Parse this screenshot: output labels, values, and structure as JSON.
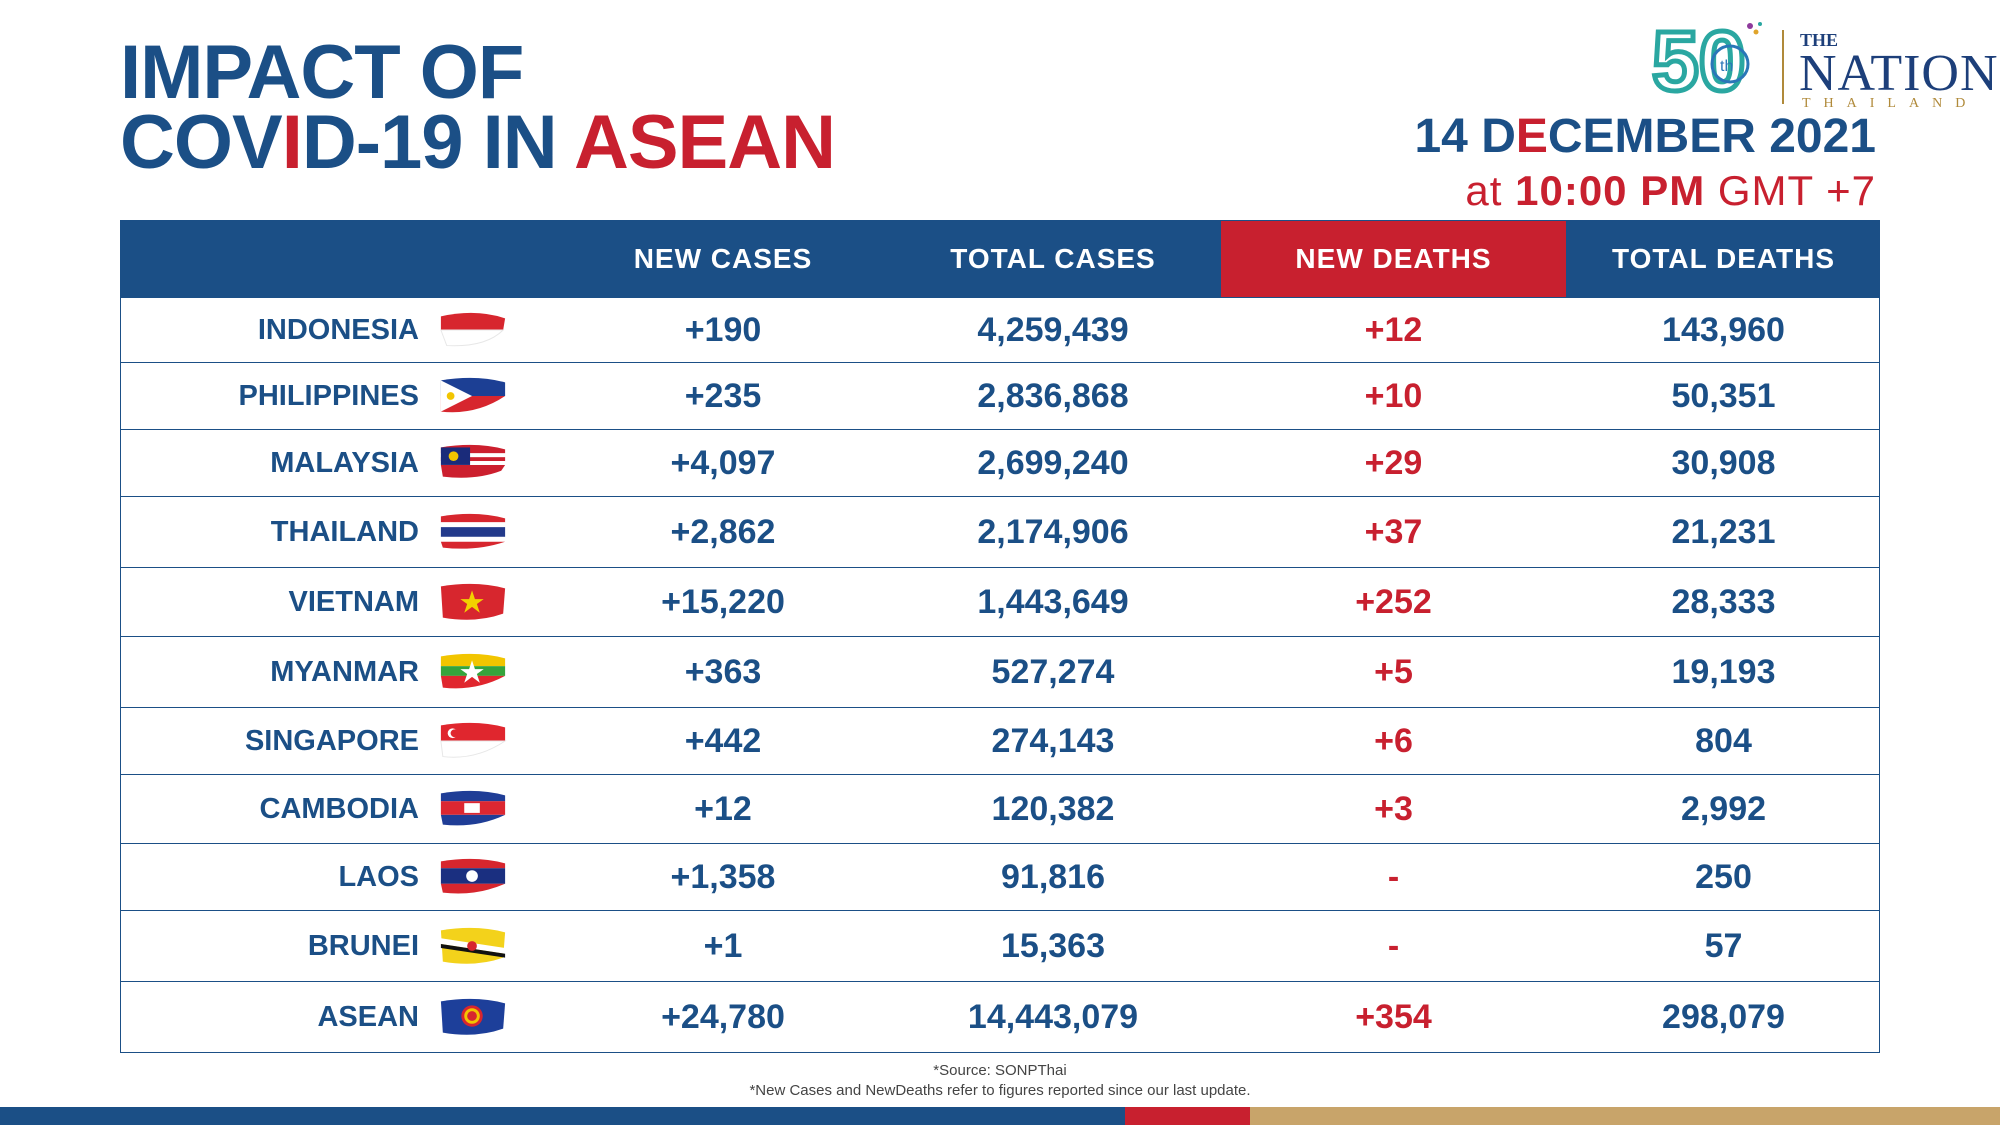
{
  "title": {
    "line1": "IMPACT OF",
    "line2_a": "COV",
    "line2_b": "I",
    "line2_c": "D-19 IN ",
    "line2_d": "ASEAN"
  },
  "logo": {
    "number": "50",
    "suffix": "th",
    "the": "THE",
    "name": "NATION",
    "sub": "THAILAND"
  },
  "date": {
    "a": "14 D",
    "b": "E",
    "c": "CEMBER 2021",
    "time_a": "at ",
    "time_b": "10:00 PM",
    "time_c": " GMT +7"
  },
  "table": {
    "headers": [
      "",
      "NEW CASES",
      "TOTAL CASES",
      "NEW DEATHS",
      "TOTAL DEATHS"
    ],
    "rows": [
      {
        "country": "INDONESIA",
        "flag": "indonesia-flag",
        "new_cases": "+190",
        "total_cases": "4,259,439",
        "new_deaths": "+12",
        "total_deaths": "143,960"
      },
      {
        "country": "PHILIPPINES",
        "flag": "philippines-flag",
        "new_cases": "+235",
        "total_cases": "2,836,868",
        "new_deaths": "+10",
        "total_deaths": "50,351"
      },
      {
        "country": "MALAYSIA",
        "flag": "malaysia-flag",
        "new_cases": "+4,097",
        "total_cases": "2,699,240",
        "new_deaths": "+29",
        "total_deaths": "30,908"
      },
      {
        "country": "THAILAND",
        "flag": "thailand-flag",
        "new_cases": "+2,862",
        "total_cases": "2,174,906",
        "new_deaths": "+37",
        "total_deaths": "21,231"
      },
      {
        "country": "VIETNAM",
        "flag": "vietnam-flag",
        "new_cases": "+15,220",
        "total_cases": "1,443,649",
        "new_deaths": "+252",
        "total_deaths": "28,333"
      },
      {
        "country": "MYANMAR",
        "flag": "myanmar-flag",
        "new_cases": "+363",
        "total_cases": "527,274",
        "new_deaths": "+5",
        "total_deaths": "19,193"
      },
      {
        "country": "SINGAPORE",
        "flag": "singapore-flag",
        "new_cases": "+442",
        "total_cases": "274,143",
        "new_deaths": "+6",
        "total_deaths": "804"
      },
      {
        "country": "CAMBODIA",
        "flag": "cambodia-flag",
        "new_cases": "+12",
        "total_cases": "120,382",
        "new_deaths": "+3",
        "total_deaths": "2,992"
      },
      {
        "country": "LAOS",
        "flag": "laos-flag",
        "new_cases": "+1,358",
        "total_cases": "91,816",
        "new_deaths": "-",
        "total_deaths": "250"
      },
      {
        "country": "BRUNEI",
        "flag": "brunei-flag",
        "new_cases": "+1",
        "total_cases": "15,363",
        "new_deaths": "-",
        "total_deaths": "57"
      },
      {
        "country": "ASEAN",
        "flag": "asean-flag",
        "new_cases": "+24,780",
        "total_cases": "14,443,079",
        "new_deaths": "+354",
        "total_deaths": "298,079"
      }
    ]
  },
  "footer": {
    "source": "*Source: SONPThai",
    "note": "*New Cases and NewDeaths refer to figures reported since our last update."
  },
  "colors": {
    "navy": "#1b4f86",
    "red": "#c8202f",
    "gold": "#c8a46a"
  }
}
